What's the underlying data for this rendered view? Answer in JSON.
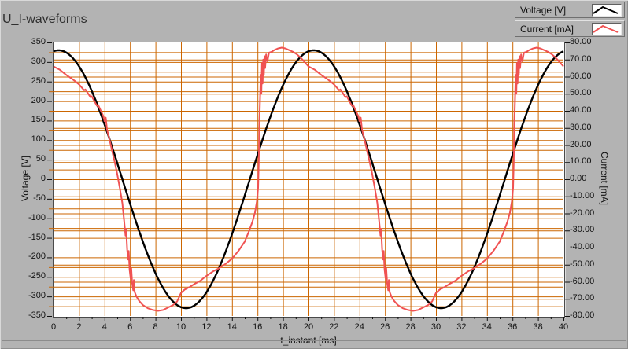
{
  "window": {
    "title": "U_I-waveforms"
  },
  "colors": {
    "panel_background": "#b3b3b3",
    "plot_background": "#ffffff",
    "grid": "#cc6600",
    "voltage_trace": "#000000",
    "current_trace": "#f05252",
    "tick": "#111111"
  },
  "legend": {
    "items": [
      {
        "label": "Voltage [V]",
        "color": "#000000"
      },
      {
        "label": "Current [mA]",
        "color": "#f05252"
      }
    ]
  },
  "chart_data": {
    "type": "line",
    "title": "U_I-waveforms",
    "grid": {
      "visible": true,
      "color": "#cc6600",
      "x_step_ms": 2,
      "voltage_step_V": 25,
      "current_step_mA": 10
    },
    "legend_position": "top-right",
    "x_axis": {
      "label": "t_instant [ms]",
      "min": 0,
      "max": 40,
      "major_tick_step": 2,
      "minor_tick_step": 1,
      "tick_labels": [
        "0",
        "2",
        "4",
        "6",
        "8",
        "10",
        "12",
        "14",
        "16",
        "18",
        "20",
        "22",
        "24",
        "26",
        "28",
        "30",
        "32",
        "34",
        "36",
        "38",
        "40"
      ]
    },
    "y_axis_left": {
      "label": "Voltage [V]",
      "min": -350,
      "max": 350,
      "major_tick_step": 50,
      "tick_labels": [
        "350",
        "300",
        "250",
        "200",
        "150",
        "100",
        "50",
        "0",
        "-50",
        "-100",
        "-150",
        "-200",
        "-250",
        "-300",
        "-350"
      ]
    },
    "y_axis_right": {
      "label": "Current [mA]",
      "min": -80,
      "max": 80,
      "major_tick_step": 10,
      "tick_labels": [
        "80.00",
        "70.00",
        "60.00",
        "50.00",
        "40.00",
        "30.00",
        "20.00",
        "10.00",
        "0.00",
        "-10.00",
        "-20.00",
        "-30.00",
        "-40.00",
        "-50.00",
        "-60.00",
        "-70.00",
        "-80.00"
      ]
    },
    "series": [
      {
        "name": "Voltage [V]",
        "axis": "left",
        "color": "#000000",
        "stroke_width": 2.4,
        "waveform": "sine",
        "amplitude_V": 330,
        "period_ms": 20,
        "peak_at_ms": 0.4,
        "t_range_ms": [
          0,
          40
        ]
      },
      {
        "name": "Current [mA]",
        "axis": "right",
        "color": "#f05252",
        "stroke_width": 2,
        "waveform": "sampled-periodic",
        "period_ms": 20,
        "cycles_shown": 2,
        "points_t_mA": [
          [
            0,
            66
          ],
          [
            0.5,
            64
          ],
          [
            1,
            61
          ],
          [
            1.5,
            58.5
          ],
          [
            2,
            55.5
          ],
          [
            2.4,
            52
          ],
          [
            2.5,
            52.5
          ],
          [
            2.9,
            48
          ],
          [
            3,
            48.5
          ],
          [
            3.4,
            43
          ],
          [
            3.5,
            43.5
          ],
          [
            3.9,
            37
          ],
          [
            4,
            34
          ],
          [
            4.1,
            36
          ],
          [
            4.2,
            29
          ],
          [
            4.4,
            23
          ],
          [
            4.6,
            16.5
          ],
          [
            4.8,
            10
          ],
          [
            5,
            3
          ],
          [
            5.2,
            -5
          ],
          [
            5.4,
            -14
          ],
          [
            5.55,
            -25
          ],
          [
            5.65,
            -33
          ],
          [
            5.7,
            -29
          ],
          [
            5.78,
            -41
          ],
          [
            5.85,
            -47
          ],
          [
            5.9,
            -42
          ],
          [
            5.97,
            -53
          ],
          [
            6.05,
            -58
          ],
          [
            6.1,
            -52
          ],
          [
            6.17,
            -61
          ],
          [
            6.25,
            -65
          ],
          [
            6.3,
            -59
          ],
          [
            6.37,
            -66
          ],
          [
            6.5,
            -68.5
          ],
          [
            6.7,
            -71
          ],
          [
            7,
            -73.5
          ],
          [
            7.4,
            -75.5
          ],
          [
            7.8,
            -76.5
          ],
          [
            8.2,
            -77
          ],
          [
            8.6,
            -76.5
          ],
          [
            9,
            -75
          ],
          [
            9.4,
            -73.5
          ],
          [
            9.7,
            -71.5
          ],
          [
            10,
            -66.5
          ],
          [
            10.3,
            -64.5
          ],
          [
            10.7,
            -63
          ],
          [
            11,
            -61.5
          ],
          [
            11.5,
            -59.5
          ],
          [
            12,
            -56.5
          ],
          [
            12.5,
            -54
          ],
          [
            13,
            -52
          ],
          [
            13.5,
            -49.5
          ],
          [
            14,
            -46.5
          ],
          [
            14.5,
            -42
          ],
          [
            15,
            -36.5
          ],
          [
            15.3,
            -31
          ],
          [
            15.6,
            -25
          ],
          [
            15.8,
            -19.5
          ],
          [
            15.95,
            -13
          ],
          [
            16.05,
            -5
          ],
          [
            16.1,
            10
          ],
          [
            16.15,
            32
          ],
          [
            16.2,
            46
          ],
          [
            16.25,
            61
          ],
          [
            16.3,
            50
          ],
          [
            16.35,
            68
          ],
          [
            16.4,
            56
          ],
          [
            16.45,
            70
          ],
          [
            16.5,
            61
          ],
          [
            16.55,
            72
          ],
          [
            16.6,
            65
          ],
          [
            16.68,
            73
          ],
          [
            16.78,
            69
          ],
          [
            16.9,
            74
          ],
          [
            17.1,
            74.5
          ],
          [
            17.3,
            75.5
          ],
          [
            17.6,
            76.5
          ],
          [
            17.9,
            77
          ],
          [
            18.2,
            76.5
          ],
          [
            18.5,
            75.5
          ],
          [
            18.8,
            74.5
          ],
          [
            19.1,
            73
          ],
          [
            19.4,
            71
          ],
          [
            19.7,
            68.5
          ],
          [
            20,
            66
          ]
        ]
      }
    ]
  }
}
